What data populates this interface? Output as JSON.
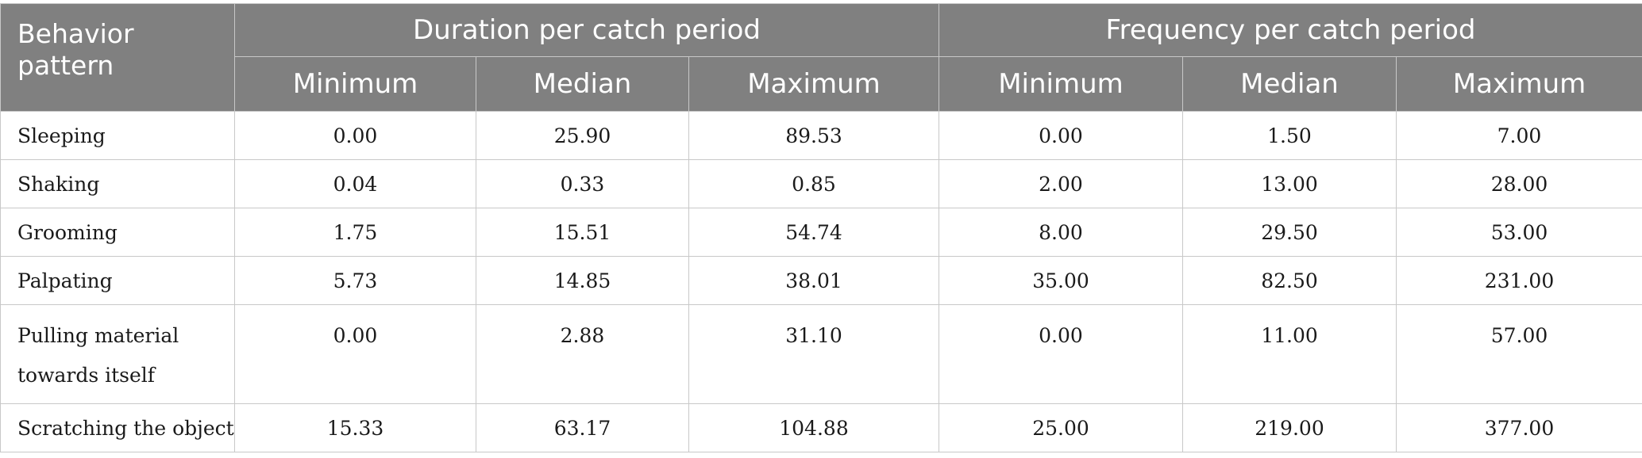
{
  "table": {
    "header": {
      "pattern": "Behavior pattern",
      "duration_group": "Duration per catch period",
      "frequency_group": "Frequency per catch period",
      "sub": [
        "Minimum",
        "Median",
        "Maximum",
        "Minimum",
        "Median",
        "Maximum"
      ]
    },
    "rows": [
      {
        "label": "Sleeping",
        "values": [
          "0.00",
          "25.90",
          "89.53",
          "0.00",
          "1.50",
          "7.00"
        ]
      },
      {
        "label": "Shaking",
        "values": [
          "0.04",
          "0.33",
          "0.85",
          "2.00",
          "13.00",
          "28.00"
        ]
      },
      {
        "label": "Grooming",
        "values": [
          "1.75",
          "15.51",
          "54.74",
          "8.00",
          "29.50",
          "53.00"
        ]
      },
      {
        "label": "Palpating",
        "values": [
          "5.73",
          "14.85",
          "38.01",
          "35.00",
          "82.50",
          "231.00"
        ]
      },
      {
        "label": "Pulling material towards itself",
        "values": [
          "0.00",
          "2.88",
          "31.10",
          "0.00",
          "11.00",
          "57.00"
        ]
      },
      {
        "label": "Scratching the object",
        "values": [
          "15.33",
          "63.17",
          "104.88",
          "25.00",
          "219.00",
          "377.00"
        ]
      }
    ]
  }
}
